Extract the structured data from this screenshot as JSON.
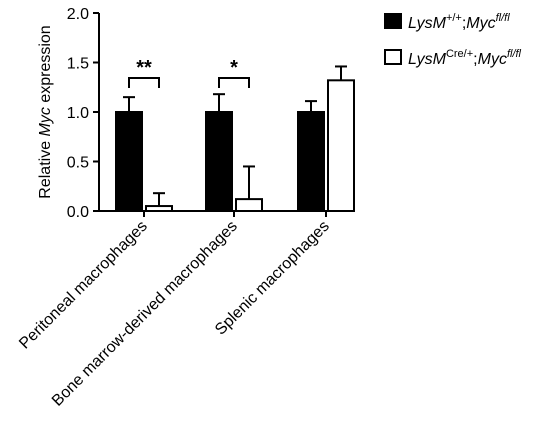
{
  "chart_data": {
    "type": "bar",
    "ylabel": {
      "pre": "Relative ",
      "italic": "Myc",
      "post": " expression"
    },
    "ylim": [
      0,
      2.0
    ],
    "yticks": [
      "0.0",
      "0.5",
      "1.0",
      "1.5",
      "2.0"
    ],
    "categories": [
      "Peritoneal macrophages",
      "Bone marrow-derived macrophages",
      "Splenic macrophages"
    ],
    "series": [
      {
        "name": "LysM+/+;Mycfl/fl",
        "legend_parts": {
          "base1": "LysM",
          "sup1": "+/+",
          "mid": ";",
          "base2": "Myc",
          "sup2": "fl/fl"
        },
        "fill": "#000000",
        "values": [
          1.0,
          1.0,
          1.0
        ],
        "errors": [
          0.15,
          0.18,
          0.11
        ]
      },
      {
        "name": "LysMCre/+;Mycfl/fl",
        "legend_parts": {
          "base1": "LysM",
          "sup1": "Cre/+",
          "mid": ";",
          "base2": "Myc",
          "sup2": "fl/fl"
        },
        "fill": "#ffffff",
        "values": [
          0.05,
          0.12,
          1.32
        ],
        "errors": [
          0.13,
          0.33,
          0.14
        ]
      }
    ],
    "significance": [
      {
        "category_index": 0,
        "label": "**"
      },
      {
        "category_index": 1,
        "label": "*"
      }
    ],
    "grid": false,
    "legend_position": "top-right"
  }
}
